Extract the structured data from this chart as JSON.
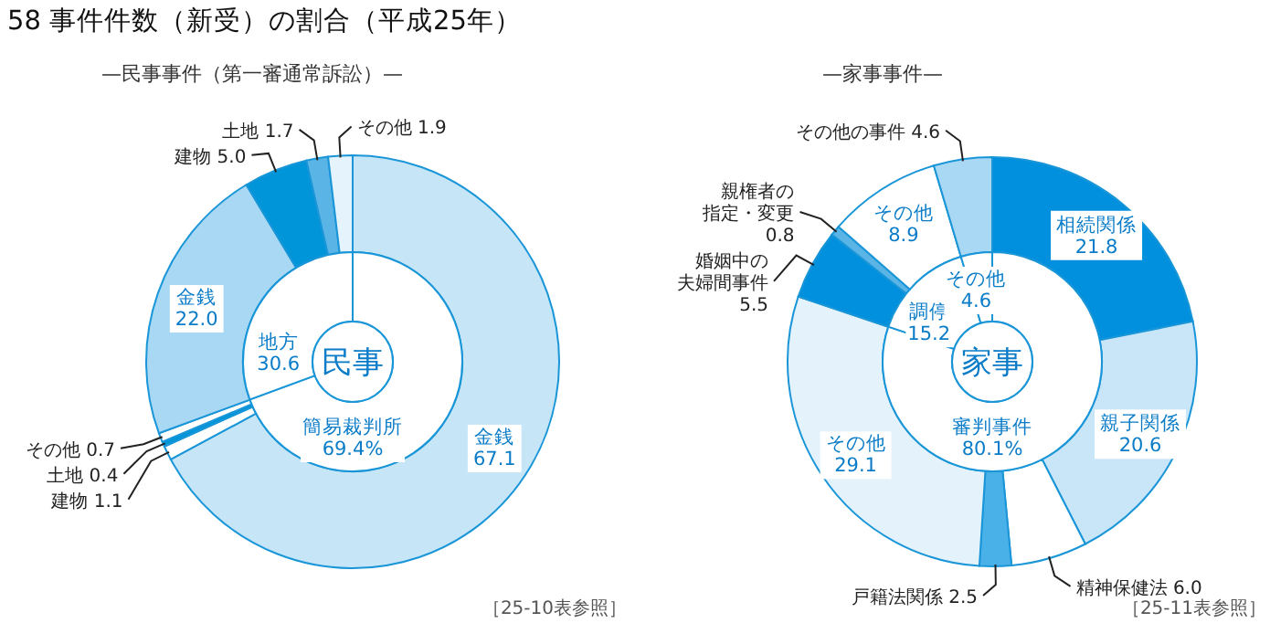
{
  "chart_data": [
    {
      "type": "donut",
      "title": "58 事件件数（新受）の割合（平成25年）",
      "subtitle": "—民事事件（第一審通常訴訟）—",
      "categories": [
        "金銭",
        "建物",
        "土地",
        "その他",
        "金銭",
        "建物",
        "土地",
        "その他"
      ],
      "values": [
        67.1,
        1.1,
        0.4,
        0.7,
        22.0,
        5.0,
        1.7,
        1.9
      ],
      "value_labels": [
        "67.1",
        "1.1",
        "0.4",
        "0.7",
        "22.0",
        "5.0",
        "1.7",
        "1.9"
      ],
      "colors": [
        "#c6e6f8",
        "#ffffff",
        "#0095d9",
        "#ffffff",
        "#a8d8f3",
        "#0095d9",
        "#5ab4e6",
        "#e4f3fc"
      ],
      "annotations": [
        "［25-10表参照］"
      ]
    },
    {
      "type": "donut",
      "categories": [
        "簡易裁判所",
        "地方"
      ],
      "values": [
        69.4,
        30.6
      ],
      "value_labels": [
        "69.4%",
        "30.6"
      ],
      "colors": [
        "#ffffff",
        "#ffffff"
      ],
      "annotations": [
        "民事"
      ]
    },
    {
      "type": "donut",
      "title": "—家事事件—",
      "categories": [
        "相続関係",
        "親子関係",
        "精神保健法",
        "戸籍法関係",
        "その他",
        "婚姻中の夫婦間事件",
        "親権者の指定・変更",
        "その他",
        "その他の事件"
      ],
      "values": [
        21.8,
        20.6,
        6.0,
        2.5,
        29.1,
        5.5,
        0.8,
        8.9,
        4.6
      ],
      "value_labels": [
        "21.8",
        "20.6",
        "6.0",
        "2.5",
        "29.1",
        "5.5",
        "0.8",
        "8.9",
        "4.6"
      ],
      "colors": [
        "#0090dd",
        "#c8e6f8",
        "#ffffff",
        "#4ab0e8",
        "#e4f2fc",
        "#0090dd",
        "#5ab4e6",
        "#ffffff",
        "#a8d8f3"
      ],
      "annotations": [
        "［25-11表参照］"
      ]
    },
    {
      "type": "donut",
      "categories": [
        "審判事件",
        "調停",
        "その他"
      ],
      "values": [
        80.1,
        15.2,
        4.6
      ],
      "value_labels": [
        "80.1%",
        "15.2",
        "4.6"
      ],
      "colors": [
        "#ffffff",
        "#ffffff",
        "#ffffff"
      ],
      "annotations": [
        "家事"
      ]
    }
  ]
}
